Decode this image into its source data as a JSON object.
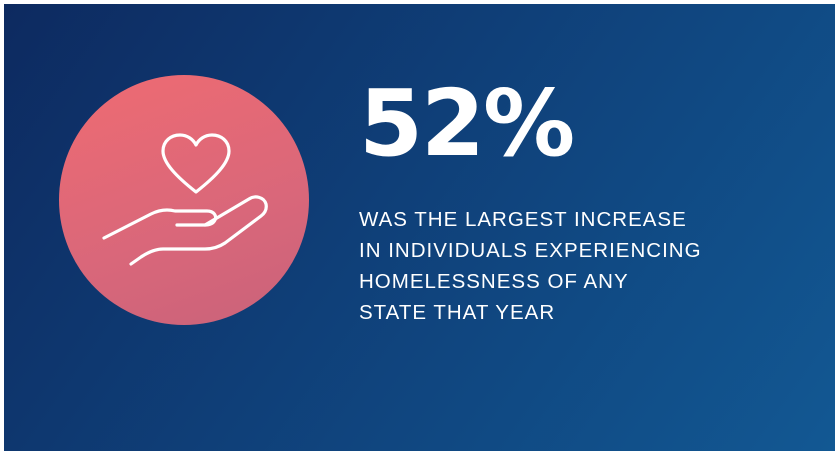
{
  "stat": {
    "value": "52%"
  },
  "description": {
    "lines": [
      "WAS THE LARGEST INCREASE",
      "IN INDIVIDUALS EXPERIENCING",
      "HOMELESSNESS OF ANY",
      "STATE THAT YEAR"
    ]
  },
  "icon": {
    "name": "heart-in-hand-icon"
  },
  "colors": {
    "background_start": "#0d2a60",
    "background_end": "#125893",
    "circle": "#e26a76",
    "text": "#ffffff"
  }
}
